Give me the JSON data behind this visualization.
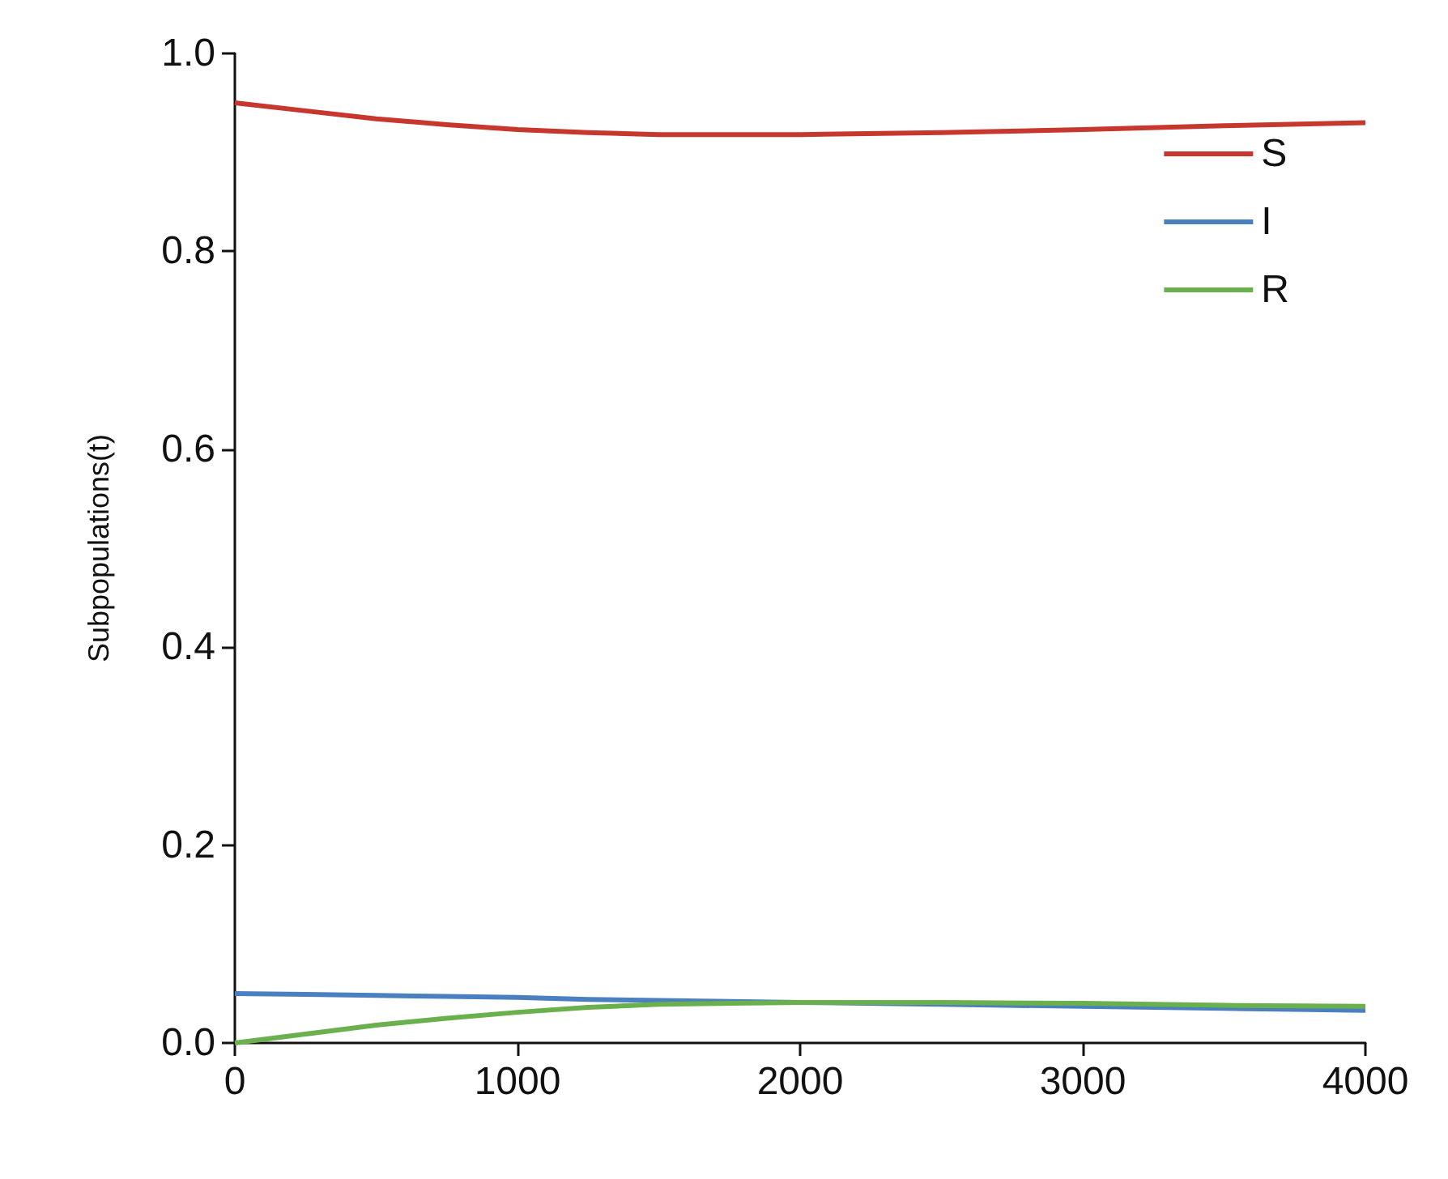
{
  "chart_data": {
    "type": "line",
    "ylabel": "Subpopulations(t)",
    "x": [
      0,
      250,
      500,
      750,
      1000,
      1250,
      1500,
      1750,
      2000,
      2500,
      3000,
      3500,
      4000
    ],
    "series": [
      {
        "name": "S",
        "color": "#c8372d",
        "values": [
          0.95,
          0.942,
          0.934,
          0.928,
          0.923,
          0.92,
          0.918,
          0.918,
          0.918,
          0.92,
          0.923,
          0.927,
          0.93
        ]
      },
      {
        "name": "I",
        "color": "#4a7fc0",
        "values": [
          0.05,
          0.049,
          0.048,
          0.047,
          0.046,
          0.044,
          0.043,
          0.042,
          0.041,
          0.039,
          0.037,
          0.035,
          0.033
        ]
      },
      {
        "name": "R",
        "color": "#6ab04c",
        "values": [
          0,
          0.009,
          0.018,
          0.025,
          0.031,
          0.036,
          0.039,
          0.04,
          0.041,
          0.041,
          0.04,
          0.038,
          0.037
        ]
      }
    ],
    "xlim": [
      0,
      4000
    ],
    "xticks": [
      0,
      1000,
      2000,
      3000,
      4000
    ],
    "ylim": [
      0,
      1
    ],
    "yticks": [
      {
        "value": 0,
        "label": "0.0"
      },
      {
        "value": 0.2,
        "label": "0.2"
      },
      {
        "value": 0.4,
        "label": "0.4"
      },
      {
        "value": 0.6,
        "label": "0.6"
      },
      {
        "value": 0.8,
        "label": "0.8"
      },
      {
        "value": 1,
        "label": "1.0"
      }
    ],
    "grid": false,
    "legend": "top right",
    "marker": "none",
    "line_style": "solid"
  }
}
